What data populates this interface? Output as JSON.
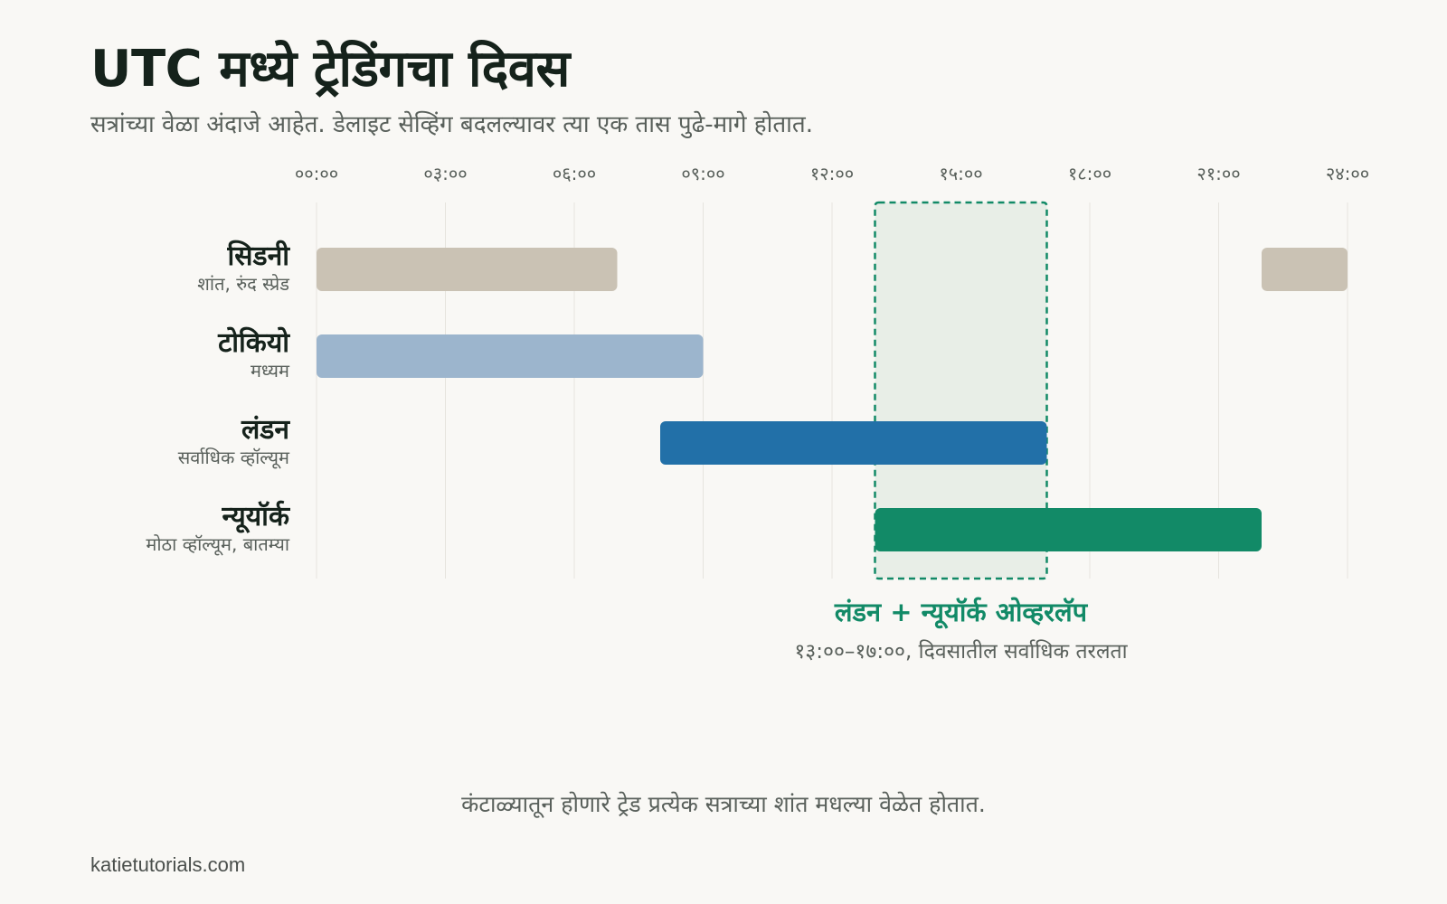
{
  "header": {
    "title": "UTC मध्ये ट्रेडिंगचा दिवस",
    "subtitle": "सत्रांच्या वेळा अंदाजे आहेत. डेलाइट सेव्हिंग बदलल्यावर त्या एक तास पुढे-मागे होतात."
  },
  "chart_data": {
    "type": "bar",
    "orientation": "horizontal-range",
    "xlim": [
      0,
      24
    ],
    "ticks": [
      {
        "value": 0,
        "label": "००:००"
      },
      {
        "value": 3,
        "label": "०३:००"
      },
      {
        "value": 6,
        "label": "०६:००"
      },
      {
        "value": 9,
        "label": "०९:००"
      },
      {
        "value": 12,
        "label": "१२:००"
      },
      {
        "value": 15,
        "label": "१५:००"
      },
      {
        "value": 18,
        "label": "१८:००"
      },
      {
        "value": 21,
        "label": "२१:००"
      },
      {
        "value": 24,
        "label": "२४:००"
      }
    ],
    "grid": true,
    "sessions": [
      {
        "name": "सिडनी",
        "note": "शांत, रुंद स्प्रेड",
        "color": "#cac2b4",
        "segments": [
          [
            0,
            7
          ],
          [
            22,
            24
          ]
        ]
      },
      {
        "name": "टोकियो",
        "note": "मध्यम",
        "color": "#9cb5cd",
        "segments": [
          [
            0,
            9
          ]
        ]
      },
      {
        "name": "लंडन",
        "note": "सर्वाधिक व्हॉल्यूम",
        "color": "#2270a8",
        "segments": [
          [
            8,
            17
          ]
        ]
      },
      {
        "name": "न्यूयॉर्क",
        "note": "मोठा व्हॉल्यूम, बातम्या",
        "color": "#128a67",
        "segments": [
          [
            13,
            22
          ]
        ]
      }
    ],
    "highlight": {
      "start": 13,
      "end": 17,
      "label": "लंडन + न्यूयॉर्क ओव्हरलॅप",
      "note": "१३:००–१७:००, दिवसातील सर्वाधिक तरलता",
      "color": "#128a67"
    }
  },
  "footnote": "कंटाळ्यातून होणारे ट्रेड प्रत्येक सत्राच्या शांत मधल्या वेळेत होतात.",
  "credit": "katietutorials.com"
}
